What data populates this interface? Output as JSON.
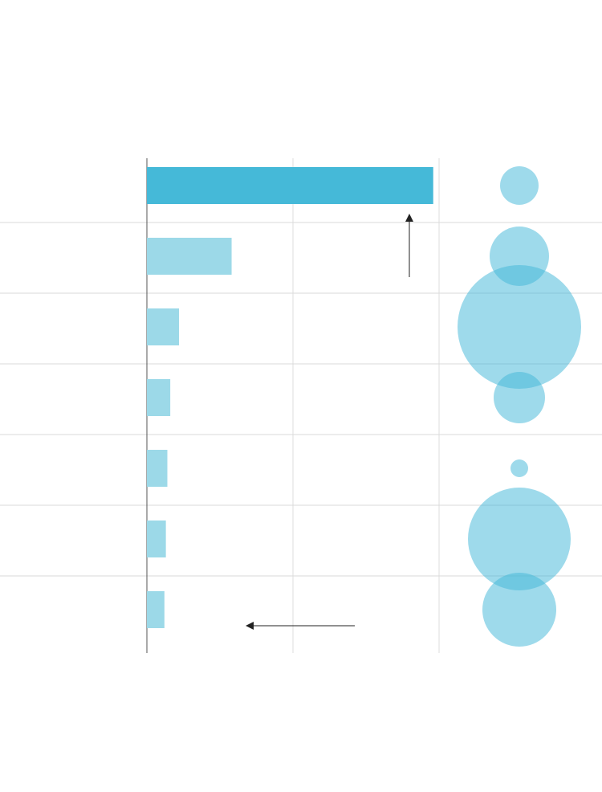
{
  "chart_data": {
    "type": "bar",
    "orientation": "horizontal",
    "categories": [
      null,
      null,
      null,
      null,
      null,
      null,
      null
    ],
    "values": [
      1.96,
      0.58,
      0.22,
      0.16,
      0.14,
      0.13,
      0.12
    ],
    "colors": [
      "#45b9d8",
      "#9cd9e8",
      "#9cd9e8",
      "#9cd9e8",
      "#9cd9e8",
      "#9cd9e8",
      "#9cd9e8"
    ],
    "sizes": [
      24,
      37,
      77,
      32,
      11,
      64,
      46
    ],
    "bubble_color": "#45b9d8",
    "xlim": [
      0,
      2
    ],
    "xticks": [
      0,
      1,
      2
    ],
    "grid": true
  }
}
